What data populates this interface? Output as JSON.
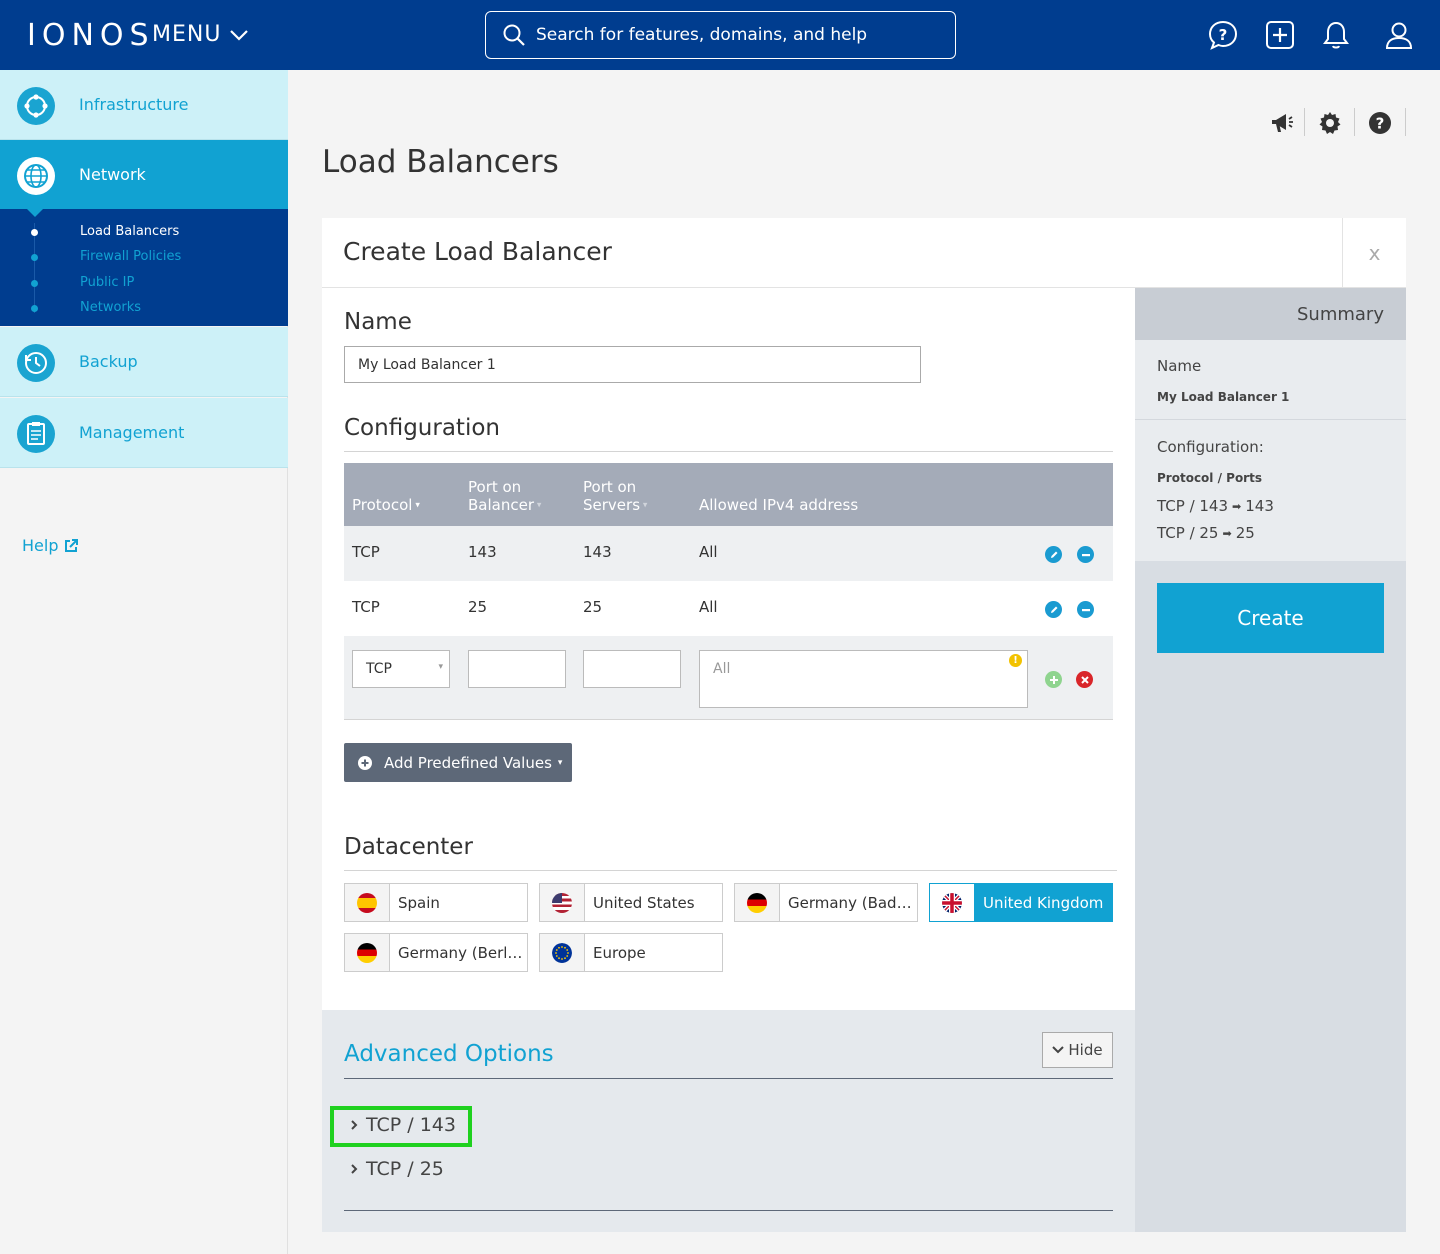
{
  "topbar": {
    "logo": "IONOS",
    "menu_label": "MENU",
    "search_placeholder": "Search for features, domains, and help",
    "icons": [
      "help-chat-icon",
      "add-icon",
      "bell-icon",
      "user-icon"
    ]
  },
  "sidebar": {
    "items": [
      {
        "label": "Infrastructure",
        "icon": "infrastructure-icon"
      },
      {
        "label": "Network",
        "icon": "network-globe-icon"
      },
      {
        "label": "Backup",
        "icon": "backup-clock-icon"
      },
      {
        "label": "Management",
        "icon": "management-clipboard-icon"
      }
    ],
    "subitems": [
      "Load Balancers",
      "Firewall Policies",
      "Public IP",
      "Networks"
    ],
    "help_label": "Help"
  },
  "page": {
    "title": "Load Balancers",
    "tool_icons": [
      "megaphone-icon",
      "gear-icon",
      "question-icon"
    ]
  },
  "form": {
    "title": "Create Load Balancer",
    "close_label": "x",
    "name_heading": "Name",
    "name_value": "My Load Balancer 1",
    "config_heading": "Configuration",
    "columns": [
      {
        "line1": "Protocol",
        "line2": ""
      },
      {
        "line1": "Port on",
        "line2": "Balancer"
      },
      {
        "line1": "Port on",
        "line2": "Servers"
      },
      {
        "line1": "Allowed IPv4 address",
        "line2": ""
      }
    ],
    "rows": [
      {
        "protocol": "TCP",
        "port_balancer": "143",
        "port_servers": "143",
        "allowed": "All"
      },
      {
        "protocol": "TCP",
        "port_balancer": "25",
        "port_servers": "25",
        "allowed": "All"
      }
    ],
    "new_row": {
      "protocol": "TCP",
      "allowed_placeholder": "All"
    },
    "predefined_button": "Add Predefined Values",
    "datacenter_heading": "Datacenter",
    "datacenters": [
      {
        "name": "Spain",
        "flag": "spain-flag-icon",
        "selected": false
      },
      {
        "name": "United States",
        "flag": "us-flag-icon",
        "selected": false
      },
      {
        "name": "Germany (Baden-Württemberg)",
        "flag": "germany-flag-icon",
        "selected": false
      },
      {
        "name": "United Kingdom",
        "flag": "uk-flag-icon",
        "selected": true
      },
      {
        "name": "Germany (Berlin)",
        "flag": "germany-flag-icon",
        "selected": false
      },
      {
        "name": "Europe",
        "flag": "eu-flag-icon",
        "selected": false
      }
    ],
    "advanced": {
      "title": "Advanced Options",
      "hide_label": "Hide",
      "items": [
        "TCP / 143",
        "TCP / 25"
      ]
    }
  },
  "summary": {
    "title": "Summary",
    "name_label": "Name",
    "name_value": "My Load Balancer 1",
    "config_label": "Configuration:",
    "proto_label": "Protocol / Ports",
    "entries": [
      {
        "left": "TCP / 143",
        "right": "143"
      },
      {
        "left": "TCP / 25",
        "right": "25"
      }
    ],
    "create_label": "Create"
  },
  "colors": {
    "brand_blue": "#003d8f",
    "accent": "#11a2d2",
    "highlight": "#1fd11f"
  }
}
